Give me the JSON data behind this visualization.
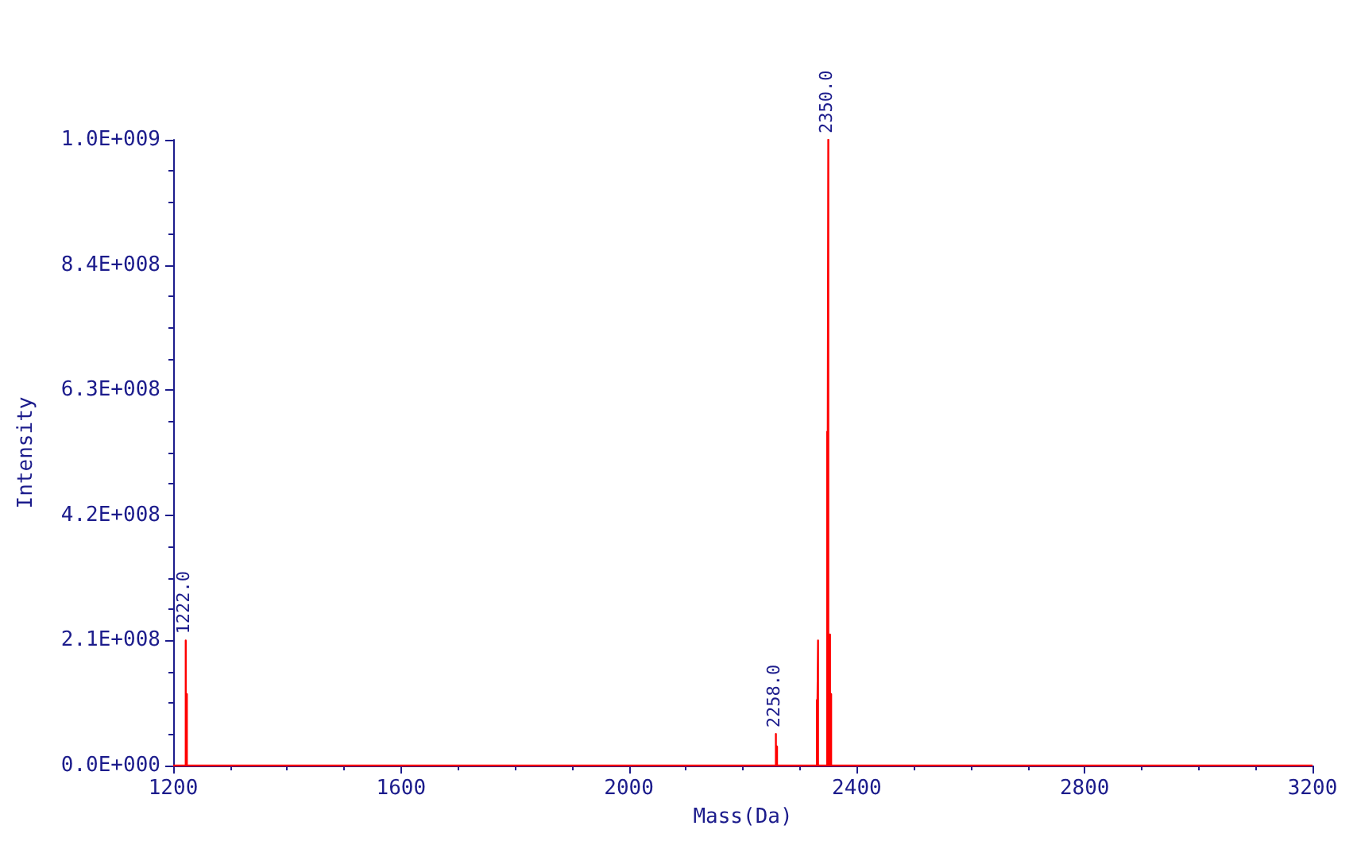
{
  "chart_data": {
    "type": "line",
    "xlabel": "Mass(Da)",
    "ylabel": "Intensity",
    "x": [
      1200,
      1222,
      1222,
      1222,
      1224,
      1224,
      1224,
      2258,
      2258,
      2258,
      2260,
      2260,
      2260,
      2330,
      2330,
      2330,
      2332,
      2332,
      2332,
      2348,
      2348,
      2348,
      2350,
      2350,
      2350,
      2353,
      2353,
      2353,
      2355,
      2355,
      2355,
      3200
    ],
    "series": [
      {
        "color": "#ff0000",
        "values": [
          0,
          0,
          210000000,
          0,
          120000000,
          0,
          0,
          0,
          53000000,
          0,
          32000000,
          0,
          0,
          0,
          110000000,
          0,
          210000000,
          0,
          0,
          0,
          560000000,
          0,
          1050000000,
          0,
          0,
          220000000,
          0,
          0,
          120000000,
          0,
          0,
          0
        ]
      }
    ],
    "xlim": [
      1200,
      3200
    ],
    "xticks": [
      1200,
      1600,
      2000,
      2400,
      2800,
      3200
    ],
    "ylim": [
      0,
      1050000000
    ],
    "yticks": [
      {
        "value": 0,
        "label": "0.0E+000"
      },
      {
        "value": 210000000,
        "label": "2.1E+008"
      },
      {
        "value": 420000000,
        "label": "4.2E+008"
      },
      {
        "value": 630000000,
        "label": "6.3E+008"
      },
      {
        "value": 840000000,
        "label": "8.4E+008"
      },
      {
        "value": 1050000000,
        "label": "1.0E+009"
      }
    ],
    "annotations": [
      {
        "text": "1222.0",
        "x": 1222,
        "y": 210000000
      },
      {
        "text": "2258.0",
        "x": 2258,
        "y": 53000000
      },
      {
        "text": "2350.0",
        "x": 2350,
        "y": 1050000000
      }
    ],
    "grid": false,
    "marker": "none",
    "line_style": "solid"
  }
}
